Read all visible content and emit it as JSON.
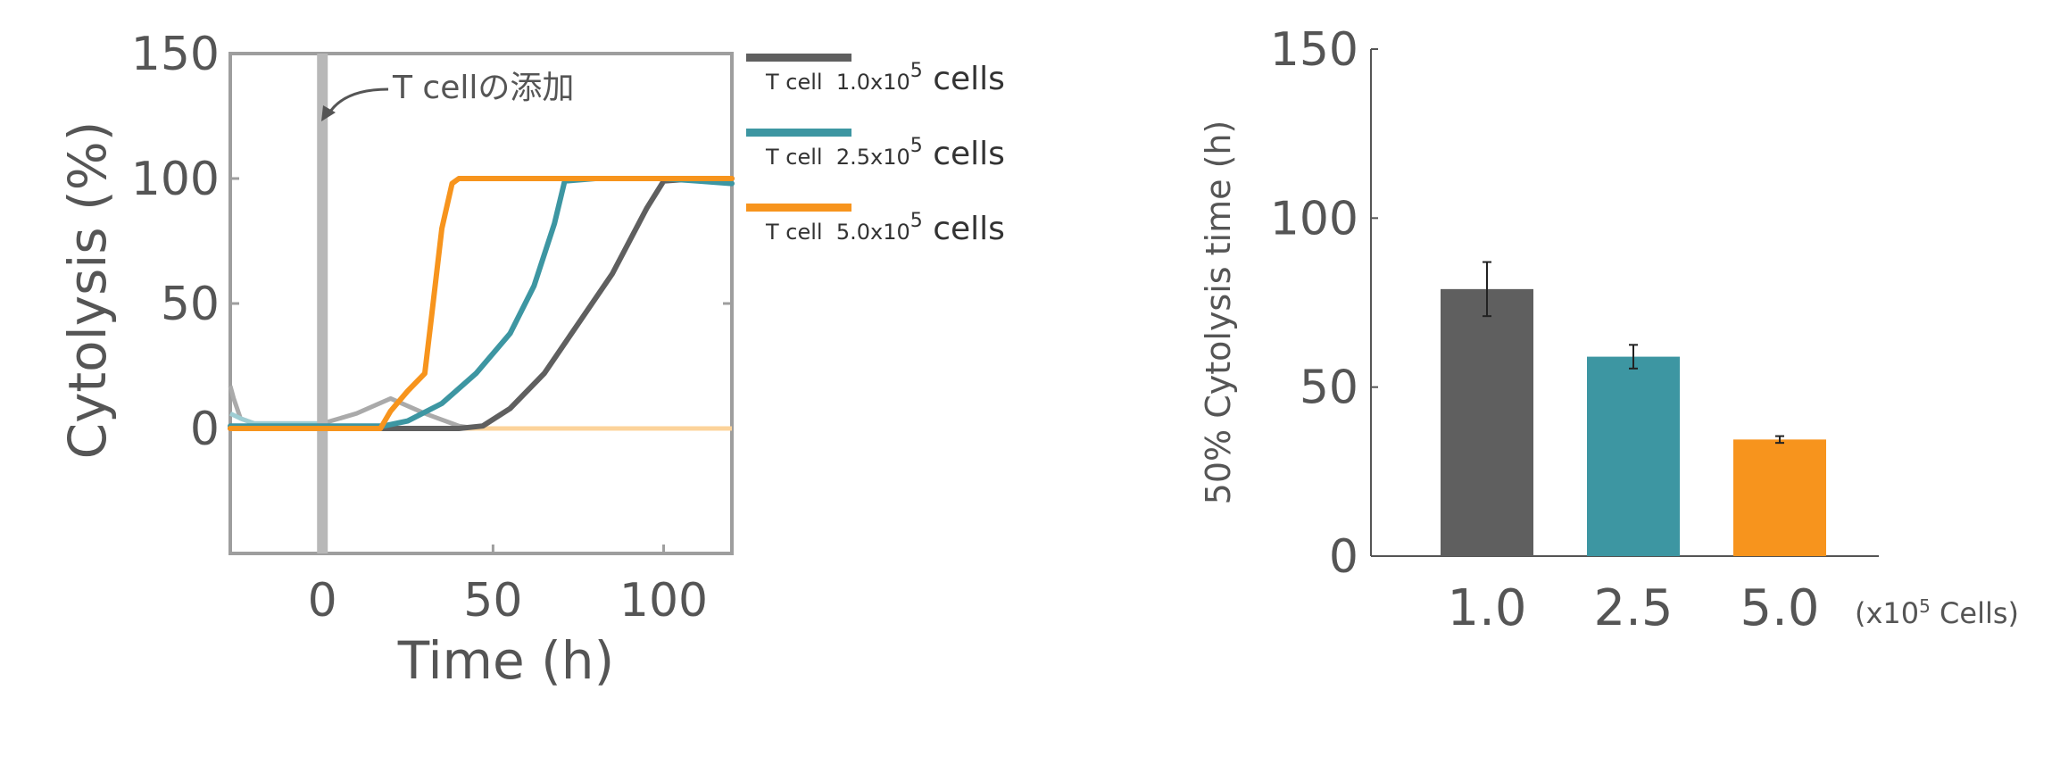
{
  "colors": {
    "dark": "#5f5f5f",
    "teal": "#3d96a2",
    "orange": "#f7941d",
    "axis": "#9e9e9e",
    "text": "#555555",
    "addition_line": "#b8b8b8"
  },
  "chart_data": [
    {
      "type": "line",
      "xlabel": "Time (h)",
      "ylabel": "Cytolysis (%)",
      "xlim": [
        -27,
        120
      ],
      "ylim": [
        -50,
        150
      ],
      "xticks": [
        "0",
        "50",
        "100"
      ],
      "yticks": [
        "150",
        "100",
        "50",
        "0"
      ],
      "annotation": {
        "text": "T cellの添加",
        "x": 0
      },
      "series": [
        {
          "name": "T cell 1.0x10⁵ cells",
          "legend_prefix": "T cell",
          "legend_value": "1.0x10",
          "legend_exp": "5",
          "legend_unit": "cells",
          "color": "#5f5f5f",
          "x": [
            -27,
            0,
            20,
            30,
            40,
            47,
            55,
            65,
            75,
            85,
            95,
            100,
            110,
            120
          ],
          "y": [
            0,
            0,
            0,
            0,
            0,
            1,
            8,
            22,
            42,
            62,
            88,
            99,
            100,
            100
          ]
        },
        {
          "name": "T cell 2.5x10⁵ cells",
          "legend_prefix": "T cell",
          "legend_value": "2.5x10",
          "legend_exp": "5",
          "legend_unit": "cells",
          "color": "#3d96a2",
          "x": [
            -27,
            0,
            18,
            25,
            35,
            45,
            55,
            62,
            68,
            71,
            80,
            100,
            110,
            120
          ],
          "y": [
            1,
            1,
            1,
            3,
            10,
            22,
            38,
            57,
            82,
            99,
            100,
            100,
            99,
            98
          ]
        },
        {
          "name": "T cell 5.0x10⁵ cells",
          "legend_prefix": "T cell",
          "legend_value": "5.0x10",
          "legend_exp": "5",
          "legend_unit": "cells",
          "color": "#f7941d",
          "x": [
            -27,
            0,
            17,
            20,
            25,
            30,
            32,
            35,
            38,
            40,
            60,
            80,
            100,
            120
          ],
          "y": [
            0,
            0,
            0,
            7,
            15,
            22,
            45,
            80,
            98,
            100,
            100,
            100,
            100,
            100
          ]
        }
      ],
      "background_traces": [
        {
          "color": "#aaaaaa",
          "x": [
            -27,
            -26,
            -24,
            -20,
            -10,
            0,
            10,
            20,
            30,
            40,
            45
          ],
          "y": [
            17,
            12,
            4,
            2,
            2,
            2,
            6,
            12,
            6,
            1,
            0
          ]
        },
        {
          "color": "#fcd39a",
          "x": [
            -27,
            120
          ],
          "y": [
            0,
            0
          ]
        },
        {
          "color": "#9fcdd3",
          "x": [
            -27,
            -24,
            -20,
            0
          ],
          "y": [
            6,
            4,
            2,
            2
          ]
        }
      ]
    },
    {
      "type": "bar",
      "ylabel": "50% Cytolysis time (h)",
      "categories": [
        "1.0",
        "2.5",
        "5.0"
      ],
      "x_unit_prefix": "(x10",
      "x_unit_exp": "5",
      "x_unit_suffix": " Cells)",
      "values": [
        79,
        59,
        34.5
      ],
      "errors": [
        8,
        3.5,
        1
      ],
      "colors": [
        "#5f5f5f",
        "#3d96a2",
        "#f7941d"
      ],
      "ylim": [
        0,
        150
      ],
      "yticks": [
        "150",
        "100",
        "50",
        "0"
      ]
    }
  ]
}
